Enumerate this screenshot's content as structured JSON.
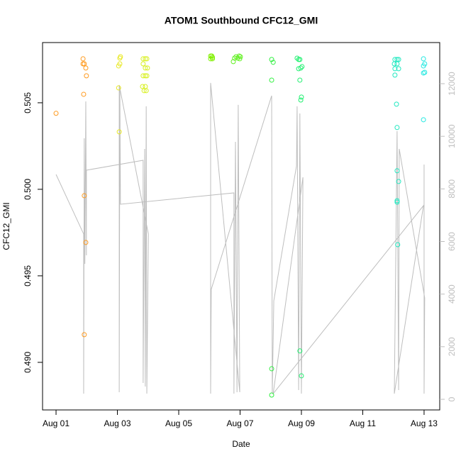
{
  "chart_data": {
    "type": "scatter",
    "title": "ATOM1 Southbound CFC12_GMI",
    "x_label": "Date",
    "y_label": "CFC12_GMI",
    "xlim": [
      0.56,
      13.51
    ],
    "xticks": [
      {
        "value": 1,
        "label": "Aug 01"
      },
      {
        "value": 3,
        "label": "Aug 03"
      },
      {
        "value": 5,
        "label": "Aug 05"
      },
      {
        "value": 7,
        "label": "Aug 07"
      },
      {
        "value": 9,
        "label": "Aug 09"
      },
      {
        "value": 11,
        "label": "Aug 11"
      },
      {
        "value": 13,
        "label": "Aug 13"
      }
    ],
    "ylim": [
      0.48725,
      0.50848
    ],
    "yticks": [
      {
        "value": 0.49,
        "label": "0.490"
      },
      0.495,
      {
        "value": 0.5,
        "label": "0.500"
      },
      0.505
    ],
    "y2lim": [
      -404,
      13564
    ],
    "y2ticks": [
      0,
      2000,
      4000,
      6000,
      8000,
      10000,
      12000
    ],
    "series": [
      {
        "color": "#bebebe",
        "axis": "y2",
        "type": "line",
        "x": [
          1.0,
          1.9,
          1.9,
          1.92,
          1.94,
          1.97,
          1.99,
          1.99,
          3.84,
          3.84,
          3.89,
          3.91,
          3.94,
          3.96,
          4.01,
          3.06,
          3.06,
          3.08,
          3.1,
          6.8,
          6.8,
          6.85,
          6.9,
          6.94,
          6.99,
          6.04,
          6.04,
          6.06,
          8.03,
          8.05,
          8.1,
          8.84,
          8.86,
          8.91,
          8.95,
          9.0,
          9.05,
          8.08,
          12.98,
          12.03,
          12.12,
          12.17,
          12.19,
          13.02,
          13.0,
          13.0
        ],
        "values": [
          8549,
          6284,
          216,
          9925,
          5151,
          11327,
          5475,
          8711,
          9089,
          620,
          9520,
          485,
          11139,
          216,
          6284,
          11948,
          270,
          11813,
          7417,
          7848,
          216,
          9790,
          270,
          11193,
          270,
          12029,
          216,
          4180,
          11543,
          216,
          3749,
          8873,
          11139,
          351,
          10869,
          216,
          8442,
          216,
          7363,
          216,
          10195,
          351,
          9520,
          3857,
          216,
          8927
        ]
      },
      {
        "color": "#ff9a1e",
        "x": [
          1.0,
          1.88,
          1.88,
          1.92,
          1.97,
          1.99,
          1.9,
          1.92,
          1.97,
          1.92
        ],
        "values": [
          0.50439,
          0.50754,
          0.50725,
          0.50725,
          0.50701,
          0.50656,
          0.50549,
          0.49963,
          0.49693,
          0.4916
        ]
      },
      {
        "color": "#e8e820",
        "x": [
          3.08,
          3.08,
          3.04,
          3.1,
          3.04,
          3.06
        ],
        "values": [
          0.50758,
          0.50725,
          0.50713,
          0.50766,
          0.50586,
          0.50332
        ]
      },
      {
        "color": "#d8f020",
        "x": [
          3.84,
          3.91,
          3.96,
          3.84,
          3.91,
          3.98,
          3.84,
          3.91,
          3.96,
          3.82,
          3.91,
          3.87,
          3.94
        ],
        "values": [
          0.50754,
          0.50754,
          0.50754,
          0.50725,
          0.50701,
          0.50701,
          0.50656,
          0.50656,
          0.50656,
          0.50594,
          0.50594,
          0.5057,
          0.5057
        ]
      },
      {
        "color": "#80f000",
        "x": [
          6.04,
          6.08,
          6.1,
          6.04,
          6.1
        ],
        "values": [
          0.5077,
          0.5077,
          0.50762,
          0.50754,
          0.50754
        ]
      },
      {
        "color": "#60f020",
        "x": [
          6.78,
          6.87,
          6.92,
          6.97,
          7.01,
          6.82,
          6.99
        ],
        "values": [
          0.50738,
          0.50766,
          0.50758,
          0.5077,
          0.50766,
          0.50758,
          0.50754
        ]
      },
      {
        "color": "#30f040",
        "x": [
          8.03,
          8.08,
          8.03,
          8.03,
          8.03
        ],
        "values": [
          0.5075,
          0.50734,
          0.50631,
          0.48963,
          0.48811
        ]
      },
      {
        "color": "#20f070",
        "x": [
          8.86,
          8.91,
          8.95,
          8.91,
          8.95,
          8.98,
          9.02,
          8.98,
          9.0,
          8.95,
          9.0
        ],
        "values": [
          0.50758,
          0.5075,
          0.5075,
          0.50697,
          0.50631,
          0.50701,
          0.50709,
          0.50516,
          0.50533,
          0.49066,
          0.48922
        ]
      },
      {
        "color": "#20e8c0",
        "x": [
          12.05,
          12.12,
          12.17,
          12.03,
          12.12,
          12.05,
          12.17,
          12.05,
          12.1,
          12.12,
          12.12,
          12.17,
          12.12,
          12.12,
          12.14
        ],
        "values": [
          0.5075,
          0.5075,
          0.5075,
          0.50725,
          0.50725,
          0.50697,
          0.50697,
          0.5066,
          0.50492,
          0.50357,
          0.50107,
          0.50045,
          0.49934,
          0.49926,
          0.4968
        ]
      },
      {
        "color": "#20e8e0",
        "x": [
          12.98,
          13.02,
          12.98,
          12.98,
          13.02,
          12.98
        ],
        "values": [
          0.50754,
          0.50725,
          0.50713,
          0.50672,
          0.50676,
          0.50402
        ]
      }
    ]
  }
}
